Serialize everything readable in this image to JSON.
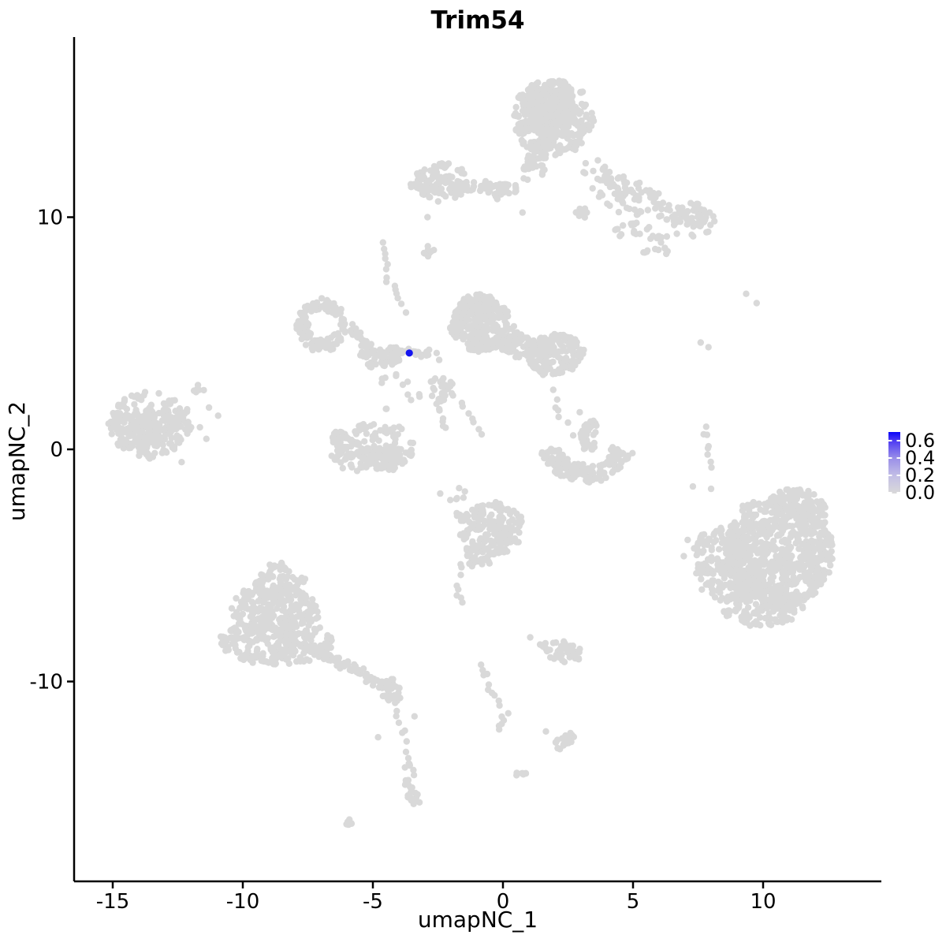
{
  "chart_data": {
    "type": "scatter",
    "title": "Trim54",
    "xlabel": "umapNC_1",
    "ylabel": "umapNC_2",
    "x_ticks": [
      -15,
      -10,
      -5,
      0,
      5,
      10
    ],
    "x_tick_labels": [
      "-15",
      "-10",
      "-5",
      "0",
      "5",
      "10"
    ],
    "y_ticks": [
      10,
      0,
      -10
    ],
    "y_tick_labels": [
      "10",
      "0",
      "-10"
    ],
    "xlim": [
      -16.5,
      14.6
    ],
    "ylim": [
      -18.6,
      17.8
    ],
    "grid": false,
    "point_color": "#D9D9D9",
    "point_radius_px": 4.2,
    "highlight_point": {
      "x": -3.6,
      "y": 4.15,
      "value": 0.68,
      "color": "#1414F0"
    },
    "legend": {
      "position": "right",
      "break_labels": [
        "0.6",
        "0.4",
        "0.2",
        "0.0"
      ],
      "break_values": [
        0.6,
        0.4,
        0.2,
        0.0
      ],
      "min": 0.0,
      "max": 0.7,
      "low_color": "#D9D9D9",
      "high_color": "#0A06F8",
      "mid_colors": [
        "#C3BFE6",
        "#9A8FE8",
        "#4E3BF3"
      ]
    },
    "clusters": [
      {
        "id": "top-main",
        "kind": "blob",
        "x": 1.9,
        "y": 14.3,
        "rx": 1.55,
        "ry": 1.65,
        "rot": 0,
        "n": 430
      },
      {
        "id": "top-main-core",
        "kind": "blob",
        "x": 1.75,
        "y": 14.5,
        "rx": 1.0,
        "ry": 1.05,
        "rot": 0,
        "n": 220
      },
      {
        "id": "top-stem",
        "kind": "blob",
        "x": 1.2,
        "y": 12.2,
        "rx": 0.42,
        "ry": 0.9,
        "rot": -10,
        "n": 45
      },
      {
        "id": "top-arm-hook",
        "kind": "blob",
        "x": -2.4,
        "y": 11.5,
        "rx": 1.0,
        "ry": 0.85,
        "rot": 0,
        "n": 120
      },
      {
        "id": "top-arm-band",
        "kind": "blob",
        "x": -0.7,
        "y": 11.25,
        "rx": 1.35,
        "ry": 0.32,
        "rot": -4,
        "n": 75
      },
      {
        "id": "top-arm-dash",
        "kind": "blob",
        "x": -3.4,
        "y": 11.35,
        "rx": 0.2,
        "ry": 0.1,
        "rot": 0,
        "n": 4
      },
      {
        "id": "arm-knot",
        "kind": "blob",
        "x": 7.3,
        "y": 9.9,
        "rx": 0.9,
        "ry": 0.7,
        "rot": -25,
        "n": 70
      },
      {
        "id": "arm-scatter-1",
        "kind": "blob",
        "x": 4.9,
        "y": 10.9,
        "rx": 1.7,
        "ry": 0.95,
        "rot": -28,
        "n": 60
      },
      {
        "id": "arm-scatter-2",
        "kind": "blob",
        "x": 5.4,
        "y": 9.1,
        "rx": 1.3,
        "ry": 0.65,
        "rot": -15,
        "n": 35
      },
      {
        "id": "arm-v-clump",
        "kind": "blob",
        "x": 3.05,
        "y": 10.1,
        "rx": 0.28,
        "ry": 0.3,
        "rot": 0,
        "n": 10
      },
      {
        "id": "dash-below-arm",
        "kind": "blob",
        "x": -2.85,
        "y": 8.65,
        "rx": 0.28,
        "ry": 0.42,
        "rot": 15,
        "n": 9
      },
      {
        "id": "ring-mid-left",
        "kind": "ring",
        "x": -6.95,
        "y": 5.35,
        "rx": 0.78,
        "ry": 0.88,
        "a0": 30,
        "a1": 330,
        "thick": 0.55,
        "n": 135
      },
      {
        "id": "junction-1",
        "kind": "blob",
        "x": -4.9,
        "y": 3.95,
        "rx": 0.62,
        "ry": 0.4,
        "rot": -20,
        "n": 45
      },
      {
        "id": "junction-2",
        "kind": "blob",
        "x": -4.15,
        "y": 4.05,
        "rx": 0.5,
        "ry": 0.35,
        "rot": 0,
        "n": 40
      },
      {
        "id": "junction-sparse",
        "kind": "blob",
        "x": -4.3,
        "y": 2.4,
        "rx": 1.15,
        "ry": 0.8,
        "rot": 0,
        "n": 13
      },
      {
        "id": "central-left",
        "kind": "blob",
        "x": -0.85,
        "y": 5.4,
        "rx": 1.15,
        "ry": 1.2,
        "rot": 0,
        "n": 300
      },
      {
        "id": "central-left-top",
        "kind": "blob",
        "x": -1.05,
        "y": 6.15,
        "rx": 0.6,
        "ry": 0.55,
        "rot": 0,
        "n": 80
      },
      {
        "id": "central-right",
        "kind": "blob",
        "x": 1.95,
        "y": 4.1,
        "rx": 1.1,
        "ry": 0.85,
        "rot": 10,
        "n": 230
      },
      {
        "id": "central-bridge",
        "kind": "blob",
        "x": 0.55,
        "y": 4.5,
        "rx": 0.95,
        "ry": 0.55,
        "rot": -15,
        "n": 110
      },
      {
        "id": "below-central-clump",
        "kind": "blob",
        "x": -2.35,
        "y": 2.6,
        "rx": 0.45,
        "ry": 0.55,
        "rot": 0,
        "n": 30
      },
      {
        "id": "crescent-smile",
        "kind": "ring",
        "x": 3.2,
        "y": 0.35,
        "rx": 1.45,
        "ry": 1.4,
        "a0": 195,
        "a1": 345,
        "thick": 0.5,
        "n": 165
      },
      {
        "id": "crescent-clump",
        "kind": "blob",
        "x": 3.3,
        "y": 0.6,
        "rx": 0.38,
        "ry": 0.7,
        "rot": 0,
        "n": 45
      },
      {
        "id": "bowl",
        "kind": "blob",
        "x": -5.05,
        "y": 0.1,
        "rx": 1.65,
        "ry": 1.1,
        "rot": 0,
        "n": 150
      },
      {
        "id": "bowl-bottom",
        "kind": "blob",
        "x": -5.0,
        "y": -0.5,
        "rx": 1.5,
        "ry": 0.45,
        "rot": 3,
        "n": 80
      },
      {
        "id": "far-left",
        "kind": "blob",
        "x": -13.55,
        "y": 1.05,
        "rx": 1.55,
        "ry": 1.45,
        "rot": 0,
        "n": 260
      },
      {
        "id": "far-left-core",
        "kind": "blob",
        "x": -13.9,
        "y": 0.8,
        "rx": 0.9,
        "ry": 0.9,
        "rot": 0,
        "n": 100
      },
      {
        "id": "far-left-sat",
        "kind": "blob",
        "x": -11.6,
        "y": 2.6,
        "rx": 0.3,
        "ry": 0.2,
        "rot": 0,
        "n": 5
      },
      {
        "id": "mountain-top",
        "kind": "blob",
        "x": -8.6,
        "y": -5.7,
        "rx": 0.95,
        "ry": 0.8,
        "rot": 0,
        "n": 90
      },
      {
        "id": "mountain-mid",
        "kind": "blob",
        "x": -8.75,
        "y": -6.9,
        "rx": 1.75,
        "ry": 1.0,
        "rot": 0,
        "n": 240
      },
      {
        "id": "mountain-base",
        "kind": "blob",
        "x": -8.7,
        "y": -8.3,
        "rx": 2.15,
        "ry": 1.0,
        "rot": 0,
        "n": 300
      },
      {
        "id": "mountain-arm-end",
        "kind": "blob",
        "x": -4.35,
        "y": -10.4,
        "rx": 0.55,
        "ry": 0.45,
        "rot": -25,
        "n": 40
      },
      {
        "id": "chain-blob-bottom",
        "kind": "blob",
        "x": -3.5,
        "y": -14.4,
        "rx": 0.3,
        "ry": 1.05,
        "rot": 10,
        "n": 26
      },
      {
        "id": "bottom-dash",
        "kind": "blob",
        "x": -5.95,
        "y": -16.1,
        "rx": 0.32,
        "ry": 0.13,
        "rot": 30,
        "n": 6
      },
      {
        "id": "mid-bottom",
        "kind": "blob",
        "x": -0.45,
        "y": -3.4,
        "rx": 1.25,
        "ry": 1.15,
        "rot": 0,
        "n": 210
      },
      {
        "id": "mid-bottom-tail",
        "kind": "blob",
        "x": -0.95,
        "y": -4.55,
        "rx": 0.5,
        "ry": 0.6,
        "rot": 20,
        "n": 40
      },
      {
        "id": "mid-bottom-strays",
        "kind": "blob",
        "x": -1.9,
        "y": -1.9,
        "rx": 0.6,
        "ry": 0.5,
        "rot": 0,
        "n": 7
      },
      {
        "id": "seven-cluster",
        "kind": "blob",
        "x": 2.15,
        "y": -8.75,
        "rx": 0.92,
        "ry": 0.5,
        "rot": -8,
        "n": 55
      },
      {
        "id": "comma-blob",
        "kind": "blob",
        "x": 2.35,
        "y": -12.6,
        "rx": 0.5,
        "ry": 0.3,
        "rot": 40,
        "n": 20
      },
      {
        "id": "tiny-comma",
        "kind": "blob",
        "x": 0.65,
        "y": -14.0,
        "rx": 0.24,
        "ry": 0.14,
        "rot": 20,
        "n": 7
      },
      {
        "id": "right-core",
        "kind": "blob",
        "x": 10.6,
        "y": -4.4,
        "rx": 2.1,
        "ry": 2.4,
        "rot": 0,
        "n": 850
      },
      {
        "id": "right-left-wing",
        "kind": "blob",
        "x": 8.6,
        "y": -4.9,
        "rx": 1.3,
        "ry": 1.7,
        "rot": 0,
        "n": 280
      },
      {
        "id": "right-top",
        "kind": "blob",
        "x": 11.4,
        "y": -2.4,
        "rx": 1.1,
        "ry": 0.7,
        "rot": -20,
        "n": 120
      },
      {
        "id": "right-bottom",
        "kind": "blob",
        "x": 10.0,
        "y": -6.8,
        "rx": 1.6,
        "ry": 0.85,
        "rot": 5,
        "n": 150
      }
    ],
    "chains": [
      {
        "id": "trail-arm",
        "pts": [
          [
            3.3,
            12.3
          ],
          [
            5.2,
            11.0
          ],
          [
            7.0,
            9.6
          ]
        ],
        "n": 55,
        "j": 0.55
      },
      {
        "id": "trail-diag",
        "pts": [
          [
            -4.6,
            8.9
          ],
          [
            -4.45,
            7.4
          ],
          [
            -3.7,
            5.9
          ]
        ],
        "n": 14,
        "j": 0.14
      },
      {
        "id": "ring-arm",
        "pts": [
          [
            -6.2,
            5.6
          ],
          [
            -5.6,
            4.9
          ],
          [
            -5.15,
            4.35
          ]
        ],
        "n": 38,
        "j": 0.26
      },
      {
        "id": "blue-neighborhood",
        "pts": [
          [
            -3.65,
            4.3
          ],
          [
            -3.2,
            4.05
          ],
          [
            -2.8,
            4.2
          ]
        ],
        "n": 14,
        "j": 0.16
      },
      {
        "id": "chain-down-1",
        "pts": [
          [
            -2.6,
            2.1
          ],
          [
            -2.4,
            1.4
          ],
          [
            -2.25,
            0.9
          ]
        ],
        "n": 7,
        "j": 0.1
      },
      {
        "id": "chain-diag-2",
        "pts": [
          [
            -1.85,
            2.3
          ],
          [
            -1.3,
            1.45
          ],
          [
            -0.8,
            0.55
          ]
        ],
        "n": 8,
        "j": 0.12
      },
      {
        "id": "chain-r",
        "pts": [
          [
            1.95,
            2.7
          ],
          [
            2.1,
            1.9
          ],
          [
            2.15,
            1.35
          ]
        ],
        "n": 5,
        "j": 0.1
      },
      {
        "id": "chain-t",
        "pts": [
          [
            7.75,
            1.05
          ],
          [
            7.85,
            0.1
          ],
          [
            8.0,
            -0.75
          ]
        ],
        "n": 8,
        "j": 0.09
      },
      {
        "id": "mountain-arm",
        "pts": [
          [
            -7.3,
            -8.55
          ],
          [
            -6.0,
            -9.35
          ],
          [
            -4.8,
            -10.1
          ]
        ],
        "n": 65,
        "j": 0.3
      },
      {
        "id": "chain-x",
        "pts": [
          [
            -4.15,
            -10.9
          ],
          [
            -4.0,
            -11.65
          ],
          [
            -3.75,
            -12.4
          ],
          [
            -3.6,
            -13.3
          ]
        ],
        "n": 9,
        "j": 0.1
      },
      {
        "id": "wavy-chain",
        "pts": [
          [
            -0.85,
            -9.2
          ],
          [
            -0.5,
            -10.3
          ],
          [
            0.1,
            -11.35
          ],
          [
            -0.15,
            -12.1
          ]
        ],
        "n": 16,
        "j": 0.12
      },
      {
        "id": "y-tail-chain",
        "pts": [
          [
            -1.5,
            -4.9
          ],
          [
            -1.8,
            -5.9
          ],
          [
            -1.6,
            -6.65
          ]
        ],
        "n": 8,
        "j": 0.12
      }
    ],
    "single_points": [
      [
        9.35,
        6.7
      ],
      [
        9.75,
        6.3
      ],
      [
        7.6,
        4.6
      ],
      [
        7.9,
        4.4
      ],
      [
        0.75,
        10.2
      ],
      [
        -2.9,
        10.0
      ],
      [
        2.95,
        1.6
      ],
      [
        2.5,
        1.15
      ],
      [
        2.7,
        0.6
      ],
      [
        8.0,
        -1.7
      ],
      [
        7.3,
        -1.6
      ],
      [
        -11.3,
        1.8
      ],
      [
        -10.95,
        1.45
      ],
      [
        -11.65,
        0.95
      ],
      [
        -11.4,
        0.45
      ],
      [
        -12.35,
        -0.55
      ],
      [
        -11.5,
        2.55
      ],
      [
        1.05,
        -8.1
      ],
      [
        1.65,
        -12.15
      ],
      [
        -4.8,
        -12.4
      ],
      [
        -3.4,
        -11.5
      ],
      [
        7.1,
        -3.9
      ],
      [
        6.95,
        -4.6
      ],
      [
        -2.55,
        4.15
      ],
      [
        -2.45,
        3.85
      ]
    ]
  }
}
